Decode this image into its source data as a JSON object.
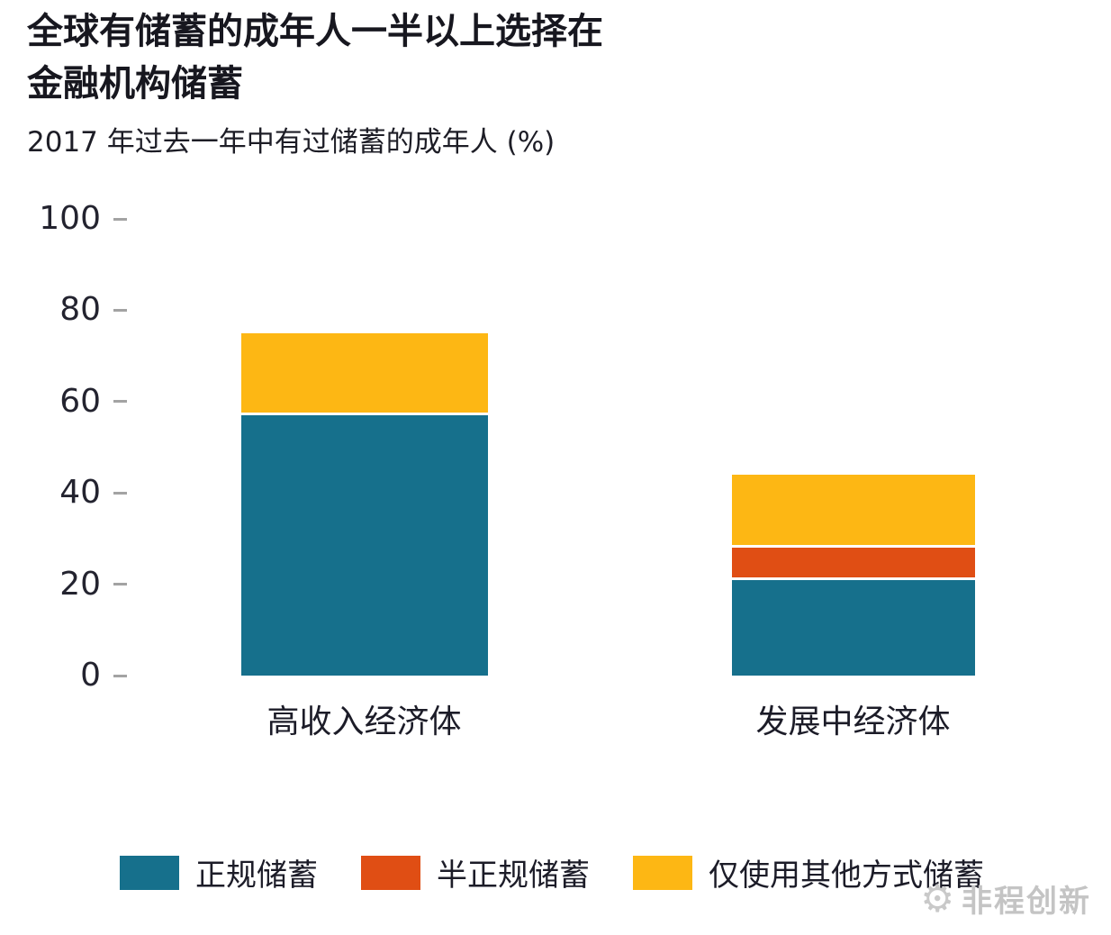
{
  "chart": {
    "title_line1": "全球有储蓄的成年人一半以上选择在",
    "title_line2": "金融机构储蓄",
    "subtitle": "2017 年过去一年中有过储蓄的成年人 (%)"
  },
  "watermark": {
    "text": "非程创新"
  },
  "chart_data": {
    "type": "bar",
    "stacked": true,
    "title": "全球有储蓄的成年人一半以上选择在金融机构储蓄",
    "subtitle": "2017 年过去一年中有过储蓄的成年人 (%)",
    "categories": [
      "高收入经济体",
      "发展中经济体"
    ],
    "series": [
      {
        "name": "正规储蓄",
        "color": "#16708c",
        "values": [
          57,
          21
        ]
      },
      {
        "name": "半正规储蓄",
        "color": "#e04e14",
        "values": [
          0,
          7
        ]
      },
      {
        "name": "仅使用其他方式储蓄",
        "color": "#fdb714",
        "values": [
          18,
          16
        ]
      }
    ],
    "xlabel": "",
    "ylabel": "",
    "ylim": [
      0,
      100
    ],
    "yticks": [
      0,
      20,
      40,
      60,
      80,
      100
    ],
    "grid": false,
    "legend_position": "bottom"
  }
}
